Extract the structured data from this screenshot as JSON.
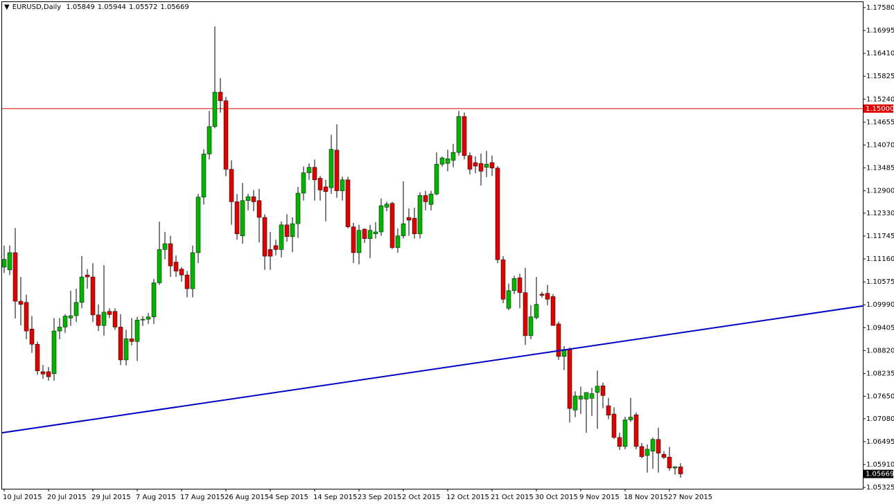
{
  "chart_data": {
    "type": "candlestick",
    "symbol": "EURUSD,Daily",
    "categories": [
      "10 Jul 2015",
      null,
      null,
      null,
      null,
      null,
      null,
      null,
      "20 Jul 2015",
      null,
      null,
      null,
      null,
      null,
      null,
      null,
      "29 Jul 2015",
      null,
      null,
      null,
      null,
      null,
      null,
      null,
      "7 Aug 2015",
      null,
      null,
      null,
      null,
      null,
      null,
      null,
      "17 Aug 2015",
      null,
      null,
      null,
      null,
      null,
      null,
      null,
      "26 Aug 2015",
      null,
      null,
      null,
      null,
      null,
      null,
      null,
      "4 Sep 2015",
      null,
      null,
      null,
      null,
      null,
      null,
      null,
      "14 Sep 2015",
      null,
      null,
      null,
      null,
      null,
      null,
      null,
      "23 Sep 2015",
      null,
      null,
      null,
      null,
      null,
      null,
      null,
      "2 Oct 2015",
      null,
      null,
      null,
      null,
      null,
      null,
      null,
      "12 Oct 2015",
      null,
      null,
      null,
      null,
      null,
      null,
      null,
      "21 Oct 2015",
      null,
      null,
      null,
      null,
      null,
      null,
      null,
      "30 Oct 2015",
      null,
      null,
      null,
      null,
      null,
      null,
      null,
      "9 Nov 2015",
      null,
      null,
      null,
      null,
      null,
      null,
      null,
      "18 Nov 2015",
      null,
      null,
      null,
      null,
      null,
      null,
      null,
      "27 Nov 2015",
      null,
      null
    ],
    "open": [
      1.1095,
      1.1088,
      1.1132,
      1.1008,
      1.1005,
      1.0937,
      1.0898,
      1.0828,
      1.0828,
      1.0823,
      1.0932,
      1.0942,
      1.0965,
      1.0971,
      1.1005,
      1.1075,
      1.107,
      1.0973,
      1.0946,
      1.0982,
      1.0982,
      1.0942,
      1.0858,
      1.0912,
      1.0905,
      1.096,
      1.0962,
      1.0968,
      1.1055,
      1.114,
      1.1155,
      1.1108,
      1.109,
      1.1075,
      1.104,
      1.1132,
      1.1274,
      1.1384,
      1.1454,
      1.1542,
      1.152,
      1.1345,
      1.1262,
      1.1175,
      1.1265,
      1.1275,
      1.1265,
      1.1222,
      1.114,
      1.115,
      1.114,
      1.1203,
      1.1173,
      1.1206,
      1.1284,
      1.1336,
      1.135,
      1.1322,
      1.13,
      1.1298,
      1.1394,
      1.129,
      1.1318,
      1.1198,
      1.1132,
      1.1192,
      1.1168,
      1.118,
      1.1185,
      1.1248,
      1.1258,
      1.1145,
      1.1175,
      1.1222,
      1.122,
      1.118,
      1.1278,
      1.1255,
      1.1282,
      1.1358,
      1.136,
      1.1368,
      1.1388,
      1.148,
      1.138,
      1.1362,
      1.136,
      1.135,
      1.1362,
      1.1348,
      1.1114,
      1.099,
      1.1035,
      1.1068,
      1.103,
      1.092,
      1.0966,
      1.1026,
      1.1028,
      1.102,
      1.095,
      1.0867,
      1.0885,
      1.073,
      1.0758,
      1.0758,
      1.076,
      1.0775,
      1.0792,
      1.0741,
      1.072,
      1.066,
      1.0637,
      1.0705,
      1.0718,
      1.0637,
      1.0614,
      1.0625,
      1.0655,
      1.0617,
      1.061,
      1.0582,
      1.05849
    ],
    "high": [
      1.115,
      1.115,
      1.1195,
      1.107,
      1.1025,
      1.097,
      1.0905,
      1.0845,
      1.084,
      1.0965,
      1.0965,
      1.0975,
      1.1035,
      1.104,
      1.1123,
      1.109,
      1.1105,
      1.1,
      1.11,
      1.099,
      1.099,
      1.0975,
      1.0935,
      1.0965,
      1.0968,
      1.097,
      1.0978,
      1.1065,
      1.1211,
      1.1185,
      1.1175,
      1.1125,
      1.1095,
      1.1085,
      1.115,
      1.1282,
      1.1396,
      1.1494,
      1.171,
      1.1578,
      1.153,
      1.1368,
      1.1282,
      1.131,
      1.1282,
      1.1292,
      1.1295,
      1.123,
      1.1185,
      1.1165,
      1.1212,
      1.123,
      1.1222,
      1.13,
      1.1352,
      1.136,
      1.137,
      1.1328,
      1.1318,
      1.1433,
      1.146,
      1.1326,
      1.1326,
      1.1208,
      1.1203,
      1.1194,
      1.1203,
      1.121,
      1.127,
      1.1262,
      1.1262,
      1.1194,
      1.1314,
      1.1245,
      1.1247,
      1.1286,
      1.129,
      1.129,
      1.1388,
      1.1378,
      1.1395,
      1.141,
      1.1494,
      1.149,
      1.1388,
      1.1378,
      1.1385,
      1.1392,
      1.138,
      1.1353,
      1.1123,
      1.1053,
      1.1073,
      1.1078,
      1.1093,
      1.0998,
      1.107,
      1.1032,
      1.105,
      1.1026,
      1.0956,
      1.0894,
      1.089,
      1.0778,
      1.079,
      1.0775,
      1.0787,
      1.0831,
      1.08,
      1.0761,
      1.0737,
      1.0672,
      1.0713,
      1.0761,
      1.0724,
      1.0646,
      1.0642,
      1.066,
      1.0685,
      1.0625,
      1.0636,
      1.0587,
      1.05944
    ],
    "low": [
      1.108,
      1.1075,
      1.0964,
      1.0946,
      1.0911,
      1.0876,
      1.082,
      1.081,
      1.0805,
      1.0805,
      1.0911,
      1.0927,
      1.0945,
      1.0955,
      1.099,
      1.104,
      1.0955,
      1.0932,
      1.092,
      1.0965,
      1.0935,
      1.0845,
      1.0844,
      1.0895,
      1.0855,
      1.0945,
      1.095,
      1.095,
      1.105,
      1.1115,
      1.107,
      1.107,
      1.1058,
      1.1018,
      1.1018,
      1.1105,
      1.1255,
      1.137,
      1.145,
      1.149,
      1.1327,
      1.1203,
      1.1165,
      1.1155,
      1.124,
      1.1238,
      1.1158,
      1.1088,
      1.1088,
      1.1125,
      1.112,
      1.116,
      1.1133,
      1.117,
      1.1265,
      1.1318,
      1.1265,
      1.1265,
      1.1212,
      1.1282,
      1.1272,
      1.1265,
      1.1194,
      1.1105,
      1.1102,
      1.1157,
      1.1118,
      1.1168,
      1.1175,
      1.1238,
      1.1141,
      1.1132,
      1.1168,
      1.1175,
      1.1168,
      1.1168,
      1.124,
      1.124,
      1.1278,
      1.1352,
      1.134,
      1.135,
      1.138,
      1.137,
      1.1332,
      1.1335,
      1.1303,
      1.1325,
      1.1328,
      1.1105,
      1.1003,
      1.0985,
      1.1026,
      1.099,
      1.0896,
      1.0911,
      1.0962,
      1.1017,
      1.0998,
      1.0946,
      1.0858,
      1.0832,
      1.0698,
      1.0712,
      1.072,
      1.0672,
      1.0715,
      1.0682,
      1.0735,
      1.0707,
      1.0656,
      1.0628,
      1.063,
      1.07,
      1.063,
      1.0607,
      1.057,
      1.058,
      1.057,
      1.0605,
      1.0575,
      1.0565,
      1.05572
    ],
    "close": [
      1.1115,
      1.1132,
      1.1008,
      1.1,
      1.0932,
      1.0898,
      1.083,
      1.0822,
      1.0815,
      1.0932,
      1.0942,
      1.097,
      1.0971,
      1.1005,
      1.107,
      1.107,
      1.0973,
      1.0946,
      1.098,
      1.0974,
      1.0942,
      1.0858,
      1.0912,
      1.0905,
      1.096,
      1.0962,
      1.0968,
      1.1055,
      1.114,
      1.1155,
      1.1098,
      1.1085,
      1.1075,
      1.104,
      1.1132,
      1.1274,
      1.1384,
      1.1454,
      1.1542,
      1.152,
      1.1345,
      1.1262,
      1.118,
      1.1265,
      1.1275,
      1.1262,
      1.1222,
      1.1123,
      1.1123,
      1.114,
      1.1203,
      1.1173,
      1.1206,
      1.1284,
      1.1336,
      1.135,
      1.1318,
      1.1292,
      1.1288,
      1.1396,
      1.129,
      1.1318,
      1.1198,
      1.1132,
      1.1189,
      1.1168,
      1.1189,
      1.1185,
      1.1252,
      1.1256,
      1.1145,
      1.1175,
      1.1206,
      1.1215,
      1.118,
      1.1278,
      1.1262,
      1.1282,
      1.1358,
      1.1374,
      1.1372,
      1.1388,
      1.148,
      1.138,
      1.1345,
      1.1353,
      1.134,
      1.1358,
      1.1348,
      1.1114,
      1.1013,
      1.1035,
      1.1066,
      1.103,
      1.092,
      1.0968,
      1.1,
      1.1023,
      1.1013,
      1.0946,
      1.0867,
      1.0885,
      1.0734,
      1.0766,
      1.0766,
      1.0775,
      1.0772,
      1.0791,
      1.0767,
      1.0717,
      1.066,
      1.0637,
      1.0705,
      1.0712,
      1.0637,
      1.0611,
      1.063,
      1.0655,
      1.062,
      1.0609,
      1.0582,
      1.0585,
      1.05669
    ],
    "up_color": "#00b400",
    "down_color": "#e00000",
    "ylim": [
      1.0529,
      1.1772
    ],
    "yticks": [
      {
        "value": 1.1758,
        "label": "1.17580"
      },
      1.16995,
      {
        "value": 1.1641,
        "label": "1.16410"
      },
      1.15825,
      {
        "value": 1.1524,
        "label": "1.15240"
      },
      1.14655,
      {
        "value": 1.1407,
        "label": "1.14070"
      },
      1.13485,
      {
        "value": 1.129,
        "label": "1.12900"
      },
      {
        "value": 1.1233,
        "label": "1.12330"
      },
      1.11745,
      {
        "value": 1.1116,
        "label": "1.11160"
      },
      1.10575,
      {
        "value": 1.0999,
        "label": "1.09990"
      },
      1.09405,
      {
        "value": 1.0882,
        "label": "1.08820"
      },
      1.08235,
      {
        "value": 1.0765,
        "label": "1.07650"
      },
      {
        "value": 1.0708,
        "label": "1.07080"
      },
      1.06495,
      {
        "value": 1.0591,
        "label": "1.05910"
      },
      1.05325
    ],
    "hline": {
      "value": 1.15,
      "label": "1.15000",
      "color": "#e00000"
    },
    "trendline": {
      "values": [
        1.0672,
        1.0996
      ],
      "color": "#0000c8"
    }
  }
}
